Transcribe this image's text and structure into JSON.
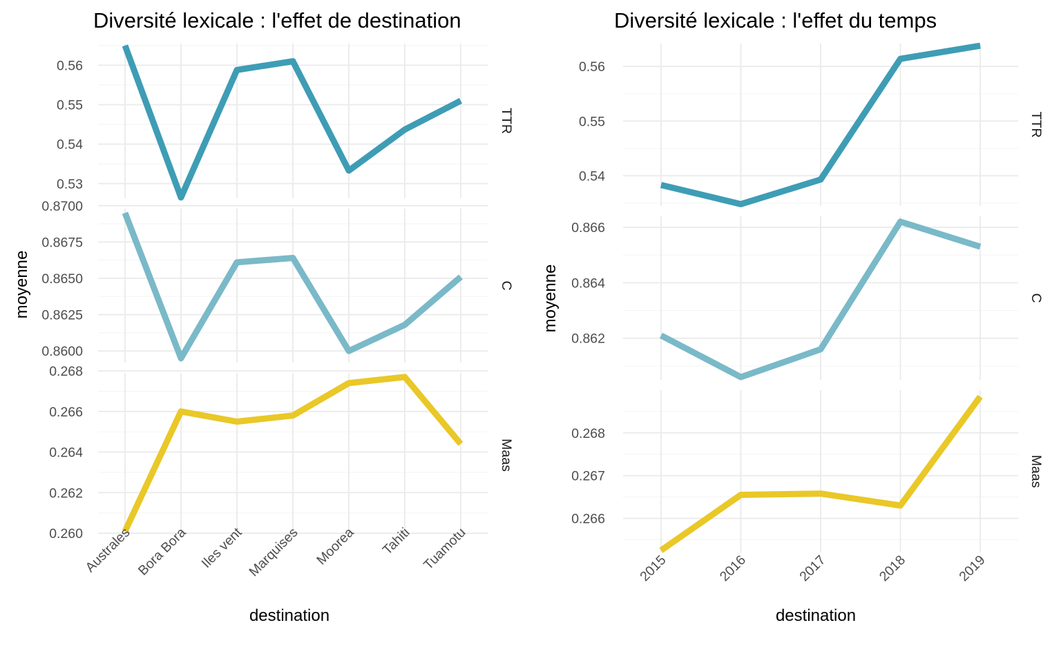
{
  "chart_data": [
    {
      "type": "line",
      "title": "Diversité lexicale : l'effet de destination",
      "xlabel": "destination",
      "ylabel": "moyenne",
      "categories": [
        "Australes",
        "Bora Bora",
        "Iles vent",
        "Marquises",
        "Moorea",
        "Tahiti",
        "Tuamotu"
      ],
      "grid": true,
      "facets": [
        {
          "strip": "TTR",
          "color": "#3e9db5",
          "ylim": [
            0.5263,
            0.5655
          ],
          "yticks": [
            0.53,
            0.54,
            0.55,
            0.56
          ],
          "ytick_labels": [
            "0.53",
            "0.54",
            "0.55",
            "0.56"
          ],
          "values": [
            0.565,
            0.5265,
            0.5588,
            0.561,
            0.5333,
            0.5437,
            0.551
          ]
        },
        {
          "strip": "C",
          "color": "#7ab9c8",
          "ylim": [
            0.8592,
            0.8698
          ],
          "yticks": [
            0.86,
            0.8625,
            0.865,
            0.8675,
            0.87
          ],
          "ytick_labels": [
            "0.8600",
            "0.8625",
            "0.8650",
            "0.8675",
            "0.8700"
          ],
          "values": [
            0.8695,
            0.8595,
            0.8661,
            0.8664,
            0.86,
            0.8618,
            0.8651
          ]
        },
        {
          "strip": "Maas",
          "color": "#e9c827",
          "ylim": [
            0.2598,
            0.2679
          ],
          "yticks": [
            0.26,
            0.262,
            0.264,
            0.266,
            0.268
          ],
          "ytick_labels": [
            "0.260",
            "0.262",
            "0.264",
            "0.266",
            "0.268"
          ],
          "values": [
            0.2601,
            0.266,
            0.2655,
            0.2658,
            0.2674,
            0.2677,
            0.2644
          ]
        }
      ]
    },
    {
      "type": "line",
      "title": "Diversité lexicale : l'effet du temps",
      "xlabel": "destination",
      "ylabel": "moyenne",
      "categories": [
        "2015",
        "2016",
        "2017",
        "2018",
        "2019"
      ],
      "grid": true,
      "facets": [
        {
          "strip": "TTR",
          "color": "#3e9db5",
          "ylim": [
            0.5345,
            0.5642
          ],
          "yticks": [
            0.54,
            0.55,
            0.56
          ],
          "ytick_labels": [
            "0.54",
            "0.55",
            "0.56"
          ],
          "values": [
            0.5383,
            0.5348,
            0.5393,
            0.5614,
            0.5638
          ]
        },
        {
          "strip": "C",
          "color": "#7ab9c8",
          "ylim": [
            0.8605,
            0.8664
          ],
          "yticks": [
            0.862,
            0.864,
            0.866
          ],
          "ytick_labels": [
            "0.862",
            "0.864",
            "0.866"
          ],
          "values": [
            0.8621,
            0.8606,
            0.8616,
            0.8662,
            0.8653
          ]
        },
        {
          "strip": "Maas",
          "color": "#e9c827",
          "ylim": [
            0.2652,
            0.269
          ],
          "yticks": [
            0.266,
            0.267,
            0.268
          ],
          "ytick_labels": [
            "0.266",
            "0.267",
            "0.268"
          ],
          "values": [
            0.26525,
            0.26655,
            0.26658,
            0.2663,
            0.26885
          ]
        }
      ]
    }
  ]
}
